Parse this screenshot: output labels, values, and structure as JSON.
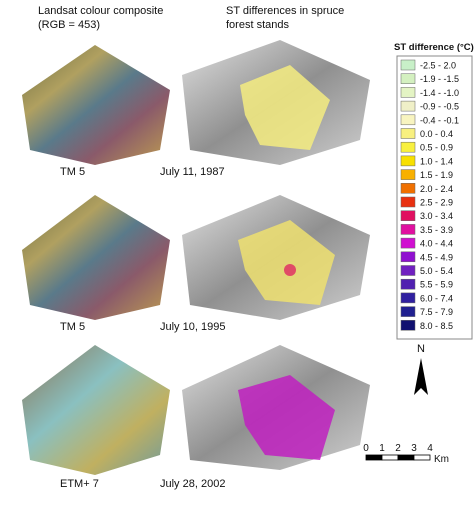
{
  "header": {
    "left_title": [
      "Landsat colour composite",
      "(RGB = 453)"
    ],
    "right_title": [
      "ST differences in spruce",
      "forest stands"
    ]
  },
  "panels": [
    {
      "sensor": "TM 5",
      "date": "July 11, 1987"
    },
    {
      "sensor": "TM 5",
      "date": "July 10, 1995"
    },
    {
      "sensor": "ETM+ 7",
      "date": "July 28, 2002"
    }
  ],
  "legend": {
    "title": "ST difference (°C)",
    "items": [
      {
        "label": "-2.5 - 2.0",
        "color": "#c8f0c8"
      },
      {
        "label": "-1.9 - -1.5",
        "color": "#d4f0c0"
      },
      {
        "label": "-1.4 - -1.0",
        "color": "#e4f4c4"
      },
      {
        "label": "-0.9 - -0.5",
        "color": "#f0f0c8"
      },
      {
        "label": "-0.4 - -0.1",
        "color": "#f8f4c0"
      },
      {
        "label": "0.0 - 0.4",
        "color": "#f8f080"
      },
      {
        "label": "0.5 - 0.9",
        "color": "#f8f040"
      },
      {
        "label": "1.0 - 1.4",
        "color": "#f8e000"
      },
      {
        "label": "1.5 - 1.9",
        "color": "#f8b000"
      },
      {
        "label": "2.0 - 2.4",
        "color": "#f07000"
      },
      {
        "label": "2.5 - 2.9",
        "color": "#e83010"
      },
      {
        "label": "3.0 - 3.4",
        "color": "#e01060"
      },
      {
        "label": "3.5 - 3.9",
        "color": "#e010a0"
      },
      {
        "label": "4.0 - 4.4",
        "color": "#d010d0"
      },
      {
        "label": "4.5 - 4.9",
        "color": "#9010d0"
      },
      {
        "label": "5.0 - 5.4",
        "color": "#7020c0"
      },
      {
        "label": "5.5 - 5.9",
        "color": "#5020b0"
      },
      {
        "label": "6.0 - 7.4",
        "color": "#3020a0"
      },
      {
        "label": "7.5 - 7.9",
        "color": "#202090"
      },
      {
        "label": "8.0 - 8.5",
        "color": "#101070"
      }
    ]
  },
  "north": "N",
  "scale_bar": {
    "ticks": [
      0,
      1,
      2,
      3,
      4
    ],
    "unit": "Km"
  }
}
